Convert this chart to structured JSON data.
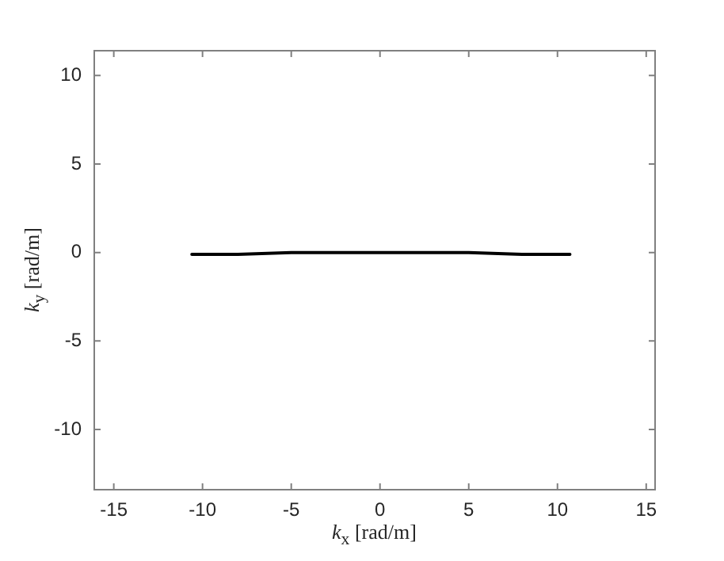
{
  "chart_data": {
    "type": "line",
    "xlabel": "k$_{x}$ [rad/m]",
    "ylabel": "k$_{y}$ [rad/m]",
    "x": [
      -10.6,
      -8,
      -5,
      -2.5,
      0,
      2.5,
      5,
      8,
      10.7
    ],
    "values": [
      -0.1,
      -0.1,
      0,
      0,
      0,
      0,
      0,
      -0.1,
      -0.1
    ],
    "color": "#000000",
    "xlim": [
      -16.1,
      15.5
    ],
    "ylim": [
      -13.4,
      11.4
    ],
    "xticks": [
      -15,
      -10,
      -5,
      0,
      5,
      10,
      15
    ],
    "yticks": [
      -10,
      -5,
      0,
      5,
      10
    ],
    "grid": false,
    "legend": false
  }
}
